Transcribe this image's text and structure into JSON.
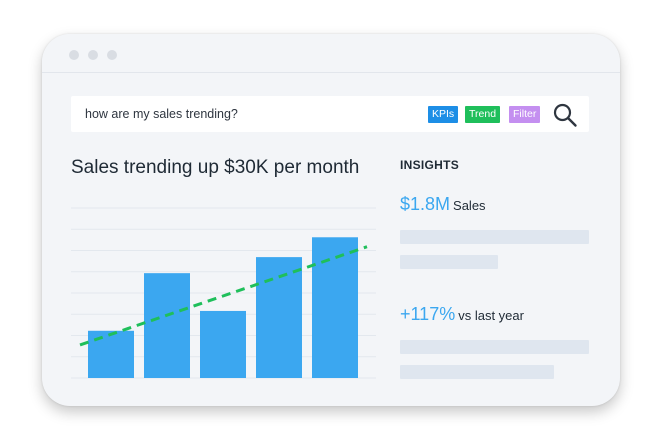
{
  "window": {
    "titlebar_dots": [
      "dot",
      "dot",
      "dot"
    ]
  },
  "search": {
    "query": "how are my sales trending?",
    "chips": [
      {
        "label": "KPIs",
        "color": "#1d8ee6"
      },
      {
        "label": "Trend",
        "color": "#1fbf5b"
      },
      {
        "label": "Filter",
        "color": "#c48ff0"
      }
    ],
    "icon": "search-icon"
  },
  "main": {
    "headline": "Sales trending up $30K per month"
  },
  "insights": {
    "title": "INSIGHTS",
    "sales": {
      "value": "$1.8M",
      "label": "Sales"
    },
    "growth": {
      "value": "+117%",
      "label": "vs last year"
    }
  },
  "colors": {
    "bar": "#3ba7f0",
    "trendline": "#1fbf5b",
    "accent_text": "#3ba7f0"
  },
  "chart_data": {
    "type": "bar",
    "categories": [
      "",
      "",
      "",
      "",
      ""
    ],
    "values": [
      5,
      11.1,
      7.1,
      12.8,
      14.9
    ],
    "trendline": {
      "style": "dashed",
      "start": 3.5,
      "end": 13.9
    },
    "ylim": [
      0,
      18
    ],
    "grid": true,
    "title": "",
    "xlabel": "",
    "ylabel": ""
  }
}
